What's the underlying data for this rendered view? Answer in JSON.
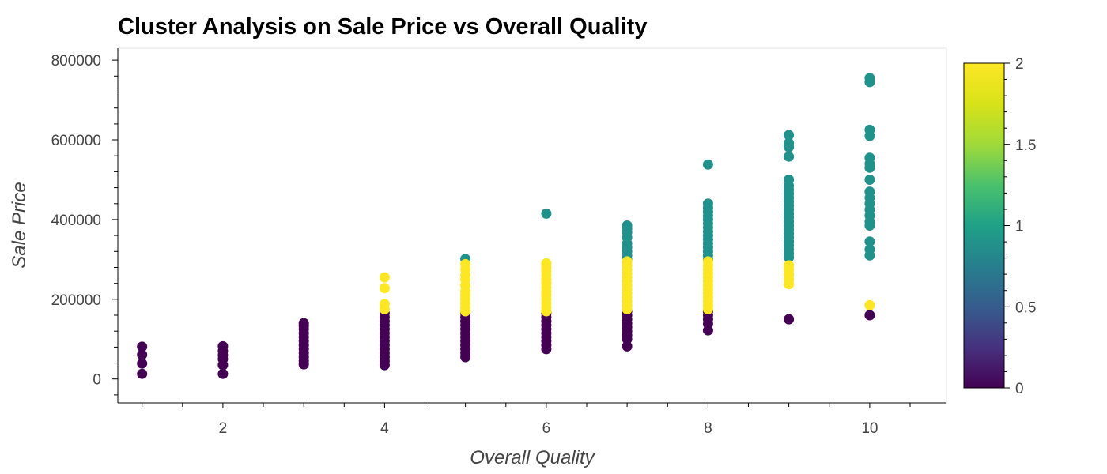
{
  "chart_data": {
    "type": "scatter",
    "title": "Cluster Analysis on Sale Price vs Overall Quality",
    "xlabel": "Overall Quality",
    "ylabel": "Sale Price",
    "xlim": [
      0.7,
      10.95
    ],
    "ylim": [
      -60000,
      830000
    ],
    "x_ticks": [
      2,
      4,
      6,
      8,
      10
    ],
    "y_ticks": [
      0,
      200000,
      400000,
      600000,
      800000
    ],
    "x_tick_labels": [
      "2",
      "4",
      "6",
      "8",
      "10"
    ],
    "y_tick_labels": [
      "0",
      "200000",
      "400000",
      "600000",
      "800000"
    ],
    "grid": false,
    "colormap": "viridis",
    "colorbar": {
      "range": [
        0,
        2
      ],
      "ticks": [
        0,
        0.5,
        1,
        1.5,
        2
      ],
      "tick_labels": [
        "0",
        "0.5",
        "1",
        "1.5",
        "2"
      ]
    },
    "series": [
      {
        "cluster": 0,
        "color": "#440154",
        "points": [
          [
            1,
            13000
          ],
          [
            1,
            39000
          ],
          [
            1,
            61000
          ],
          [
            1,
            81000
          ],
          [
            2,
            13000
          ],
          [
            2,
            35000
          ],
          [
            2,
            50000
          ],
          [
            2,
            60000
          ],
          [
            2,
            70000
          ],
          [
            2,
            82000
          ],
          [
            3,
            37000
          ],
          [
            3,
            45000
          ],
          [
            3,
            55000
          ],
          [
            3,
            65000
          ],
          [
            3,
            75000
          ],
          [
            3,
            85000
          ],
          [
            3,
            95000
          ],
          [
            3,
            105000
          ],
          [
            3,
            115000
          ],
          [
            3,
            125000
          ],
          [
            3,
            133000
          ],
          [
            3,
            140000
          ],
          [
            4,
            35000
          ],
          [
            4,
            45000
          ],
          [
            4,
            55000
          ],
          [
            4,
            65000
          ],
          [
            4,
            75000
          ],
          [
            4,
            85000
          ],
          [
            4,
            95000
          ],
          [
            4,
            105000
          ],
          [
            4,
            115000
          ],
          [
            4,
            125000
          ],
          [
            4,
            135000
          ],
          [
            4,
            145000
          ],
          [
            4,
            155000
          ],
          [
            4,
            165000
          ],
          [
            5,
            55000
          ],
          [
            5,
            65000
          ],
          [
            5,
            75000
          ],
          [
            5,
            85000
          ],
          [
            5,
            95000
          ],
          [
            5,
            105000
          ],
          [
            5,
            115000
          ],
          [
            5,
            125000
          ],
          [
            5,
            135000
          ],
          [
            5,
            145000
          ],
          [
            5,
            155000
          ],
          [
            5,
            165000
          ],
          [
            6,
            75000
          ],
          [
            6,
            85000
          ],
          [
            6,
            95000
          ],
          [
            6,
            105000
          ],
          [
            6,
            115000
          ],
          [
            6,
            125000
          ],
          [
            6,
            135000
          ],
          [
            6,
            145000
          ],
          [
            6,
            155000
          ],
          [
            6,
            165000
          ],
          [
            7,
            82000
          ],
          [
            7,
            100000
          ],
          [
            7,
            110000
          ],
          [
            7,
            120000
          ],
          [
            7,
            130000
          ],
          [
            7,
            140000
          ],
          [
            7,
            150000
          ],
          [
            7,
            160000
          ],
          [
            7,
            170000
          ],
          [
            8,
            122000
          ],
          [
            8,
            138000
          ],
          [
            8,
            150000
          ],
          [
            8,
            160000
          ],
          [
            8,
            170000
          ],
          [
            9,
            150000
          ],
          [
            10,
            160000
          ]
        ]
      },
      {
        "cluster": 1,
        "color": "#21918c",
        "points": [
          [
            5,
            301000
          ],
          [
            6,
            415000
          ],
          [
            7,
            300000
          ],
          [
            7,
            310000
          ],
          [
            7,
            320000
          ],
          [
            7,
            330000
          ],
          [
            7,
            340000
          ],
          [
            7,
            355000
          ],
          [
            7,
            368000
          ],
          [
            7,
            377000
          ],
          [
            7,
            385000
          ],
          [
            8,
            300000
          ],
          [
            8,
            310000
          ],
          [
            8,
            320000
          ],
          [
            8,
            330000
          ],
          [
            8,
            340000
          ],
          [
            8,
            350000
          ],
          [
            8,
            360000
          ],
          [
            8,
            370000
          ],
          [
            8,
            380000
          ],
          [
            8,
            390000
          ],
          [
            8,
            400000
          ],
          [
            8,
            410000
          ],
          [
            8,
            420000
          ],
          [
            8,
            430000
          ],
          [
            8,
            440000
          ],
          [
            8,
            538000
          ],
          [
            9,
            305000
          ],
          [
            9,
            315000
          ],
          [
            9,
            325000
          ],
          [
            9,
            335000
          ],
          [
            9,
            345000
          ],
          [
            9,
            355000
          ],
          [
            9,
            365000
          ],
          [
            9,
            375000
          ],
          [
            9,
            385000
          ],
          [
            9,
            395000
          ],
          [
            9,
            405000
          ],
          [
            9,
            415000
          ],
          [
            9,
            425000
          ],
          [
            9,
            435000
          ],
          [
            9,
            445000
          ],
          [
            9,
            455000
          ],
          [
            9,
            465000
          ],
          [
            9,
            475000
          ],
          [
            9,
            485000
          ],
          [
            9,
            500000
          ],
          [
            9,
            558000
          ],
          [
            9,
            582000
          ],
          [
            9,
            592000
          ],
          [
            9,
            612000
          ],
          [
            10,
            310000
          ],
          [
            10,
            325000
          ],
          [
            10,
            345000
          ],
          [
            10,
            385000
          ],
          [
            10,
            395000
          ],
          [
            10,
            410000
          ],
          [
            10,
            425000
          ],
          [
            10,
            440000
          ],
          [
            10,
            455000
          ],
          [
            10,
            470000
          ],
          [
            10,
            500000
          ],
          [
            10,
            530000
          ],
          [
            10,
            540000
          ],
          [
            10,
            555000
          ],
          [
            10,
            610000
          ],
          [
            10,
            625000
          ],
          [
            10,
            745000
          ],
          [
            10,
            755000
          ]
        ]
      },
      {
        "cluster": 2,
        "color": "#fde725",
        "points": [
          [
            4,
            175000
          ],
          [
            4,
            188000
          ],
          [
            4,
            228000
          ],
          [
            4,
            255000
          ],
          [
            5,
            170000
          ],
          [
            5,
            180000
          ],
          [
            5,
            190000
          ],
          [
            5,
            200000
          ],
          [
            5,
            210000
          ],
          [
            5,
            220000
          ],
          [
            5,
            235000
          ],
          [
            5,
            250000
          ],
          [
            5,
            260000
          ],
          [
            5,
            275000
          ],
          [
            5,
            288000
          ],
          [
            6,
            170000
          ],
          [
            6,
            180000
          ],
          [
            6,
            190000
          ],
          [
            6,
            200000
          ],
          [
            6,
            210000
          ],
          [
            6,
            220000
          ],
          [
            6,
            230000
          ],
          [
            6,
            240000
          ],
          [
            6,
            250000
          ],
          [
            6,
            260000
          ],
          [
            6,
            270000
          ],
          [
            6,
            280000
          ],
          [
            6,
            290000
          ],
          [
            7,
            175000
          ],
          [
            7,
            185000
          ],
          [
            7,
            195000
          ],
          [
            7,
            205000
          ],
          [
            7,
            215000
          ],
          [
            7,
            225000
          ],
          [
            7,
            235000
          ],
          [
            7,
            245000
          ],
          [
            7,
            255000
          ],
          [
            7,
            265000
          ],
          [
            7,
            275000
          ],
          [
            7,
            285000
          ],
          [
            7,
            295000
          ],
          [
            8,
            175000
          ],
          [
            8,
            185000
          ],
          [
            8,
            195000
          ],
          [
            8,
            205000
          ],
          [
            8,
            215000
          ],
          [
            8,
            225000
          ],
          [
            8,
            235000
          ],
          [
            8,
            245000
          ],
          [
            8,
            255000
          ],
          [
            8,
            265000
          ],
          [
            8,
            275000
          ],
          [
            8,
            285000
          ],
          [
            8,
            295000
          ],
          [
            9,
            238000
          ],
          [
            9,
            250000
          ],
          [
            9,
            262000
          ],
          [
            9,
            275000
          ],
          [
            9,
            285000
          ],
          [
            10,
            185000
          ]
        ]
      }
    ]
  }
}
